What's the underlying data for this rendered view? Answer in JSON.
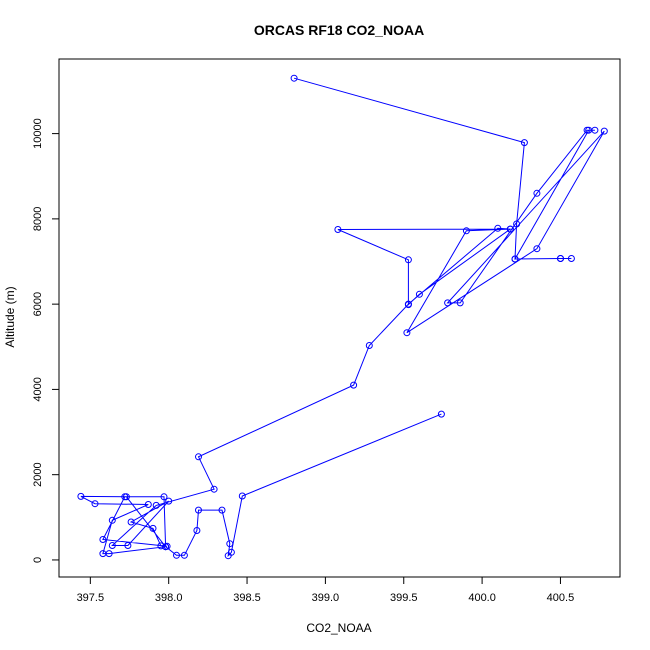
{
  "chart_data": {
    "type": "line",
    "title": "ORCAS RF18 CO2_NOAA",
    "xlabel": "CO2_NOAA",
    "ylabel": "Altitude (m)",
    "xlim": [
      397.3,
      400.88
    ],
    "ylim": [
      -400,
      11750
    ],
    "x_ticks": [
      397.5,
      398.0,
      398.5,
      399.0,
      399.5,
      400.0,
      400.5
    ],
    "x_tick_labels": [
      "397.5",
      "398.0",
      "398.5",
      "399.0",
      "399.5",
      "400.0",
      "400.5"
    ],
    "y_ticks": [
      0,
      2000,
      4000,
      6000,
      8000,
      10000
    ],
    "y_tick_labels": [
      "0",
      "2000",
      "4000",
      "6000",
      "8000",
      "10000"
    ],
    "grid": false,
    "legend": "none",
    "marker": "open-circle",
    "color": "#0000ff",
    "series": [
      {
        "points": [
          [
            398.8,
            11300
          ],
          [
            400.27,
            9790
          ],
          [
            400.22,
            7880
          ],
          [
            400.21,
            7060
          ],
          [
            400.5,
            7070
          ],
          [
            400.57,
            7070
          ],
          [
            400.5,
            7070
          ],
          [
            400.21,
            7060
          ],
          [
            400.68,
            10080
          ],
          [
            400.72,
            10080
          ],
          [
            400.67,
            10080
          ],
          [
            400.35,
            8600
          ],
          [
            399.86,
            6030
          ],
          [
            399.78,
            6030
          ],
          [
            400.78,
            10060
          ],
          [
            400.35,
            7300
          ],
          [
            399.52,
            5330
          ],
          [
            399.9,
            7720
          ],
          [
            400.18,
            7760
          ],
          [
            399.08,
            7750
          ],
          [
            399.53,
            7040
          ],
          [
            399.53,
            5990
          ],
          [
            399.6,
            6230
          ],
          [
            400.18,
            7760
          ],
          [
            400.1,
            7780
          ],
          [
            399.53,
            6000
          ],
          [
            399.28,
            5030
          ],
          [
            399.18,
            4100
          ],
          [
            398.19,
            2420
          ],
          [
            398.29,
            1660
          ],
          [
            397.92,
            1280
          ],
          [
            397.64,
            340
          ],
          [
            397.74,
            340
          ],
          [
            398.0,
            1380
          ],
          [
            397.76,
            890
          ],
          [
            397.9,
            740
          ],
          [
            397.95,
            330
          ],
          [
            397.99,
            320
          ],
          [
            397.58,
            480
          ],
          [
            397.72,
            1480
          ],
          [
            397.97,
            1480
          ],
          [
            397.98,
            310
          ],
          [
            397.62,
            150
          ],
          [
            397.58,
            150
          ],
          [
            397.64,
            930
          ],
          [
            397.87,
            1300
          ],
          [
            397.53,
            1320
          ],
          [
            397.44,
            1490
          ],
          [
            397.73,
            1480
          ],
          [
            397.98,
            310
          ],
          [
            398.05,
            110
          ],
          [
            398.1,
            110
          ],
          [
            398.18,
            690
          ],
          [
            398.19,
            1170
          ],
          [
            398.34,
            1170
          ],
          [
            398.39,
            380
          ],
          [
            398.38,
            100
          ],
          [
            398.4,
            180
          ],
          [
            398.47,
            1500
          ],
          [
            399.74,
            3420
          ]
        ]
      }
    ]
  }
}
